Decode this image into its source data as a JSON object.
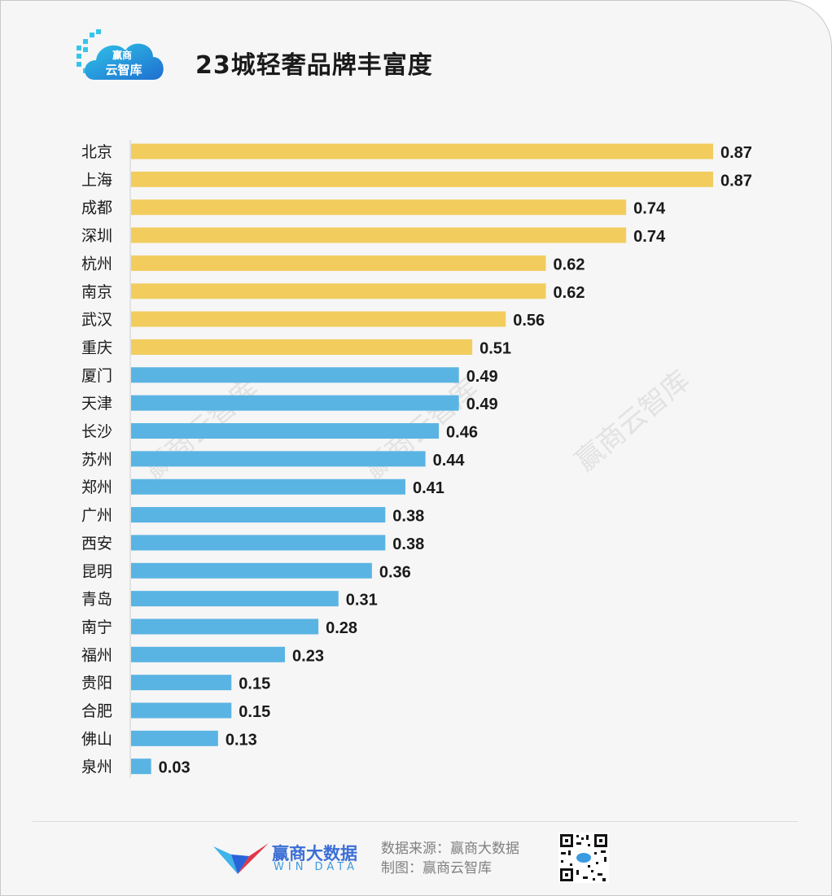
{
  "header": {
    "logo_text_top": "赢商",
    "logo_text_bottom": "云智库",
    "title": "23城轻奢品牌丰富度"
  },
  "colors": {
    "highlight": "#f2cd5e",
    "normal": "#5ab4e3",
    "label": "#1a1a1a"
  },
  "chart_data": {
    "type": "bar",
    "orientation": "horizontal",
    "title": "23城轻奢品牌丰富度",
    "categories": [
      "北京",
      "上海",
      "成都",
      "深圳",
      "杭州",
      "南京",
      "武汉",
      "重庆",
      "厦门",
      "天津",
      "长沙",
      "苏州",
      "郑州",
      "广州",
      "西安",
      "昆明",
      "青岛",
      "南宁",
      "福州",
      "贵阳",
      "合肥",
      "佛山",
      "泉州"
    ],
    "values": [
      0.87,
      0.87,
      0.74,
      0.74,
      0.62,
      0.62,
      0.56,
      0.51,
      0.49,
      0.49,
      0.46,
      0.44,
      0.41,
      0.38,
      0.38,
      0.36,
      0.31,
      0.28,
      0.23,
      0.15,
      0.15,
      0.13,
      0.03
    ],
    "highlight_count": 8,
    "xlim": [
      0,
      0.87
    ],
    "xlabel": "",
    "ylabel": "",
    "grid": false,
    "legend": "none"
  },
  "watermark": "赢商云智库",
  "footer": {
    "brand_cn": "赢商大数据",
    "brand_en": "WIN DATA",
    "source": "数据来源：赢商大数据",
    "made_by": "制图：赢商云智库",
    "qr_icon": "qr-code-icon"
  }
}
